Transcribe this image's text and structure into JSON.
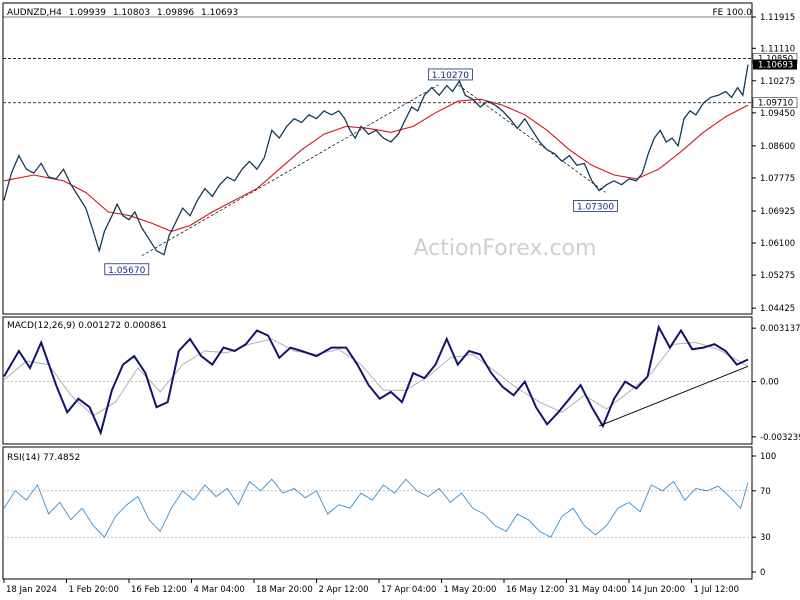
{
  "chart_data": {
    "type": "line",
    "symbol_header": "AUDNZD,H4",
    "ohlc": {
      "open": "1.09939",
      "high": "1.10803",
      "low": "1.09896",
      "close": "1.10693"
    },
    "fe_label": "FE 100.0",
    "watermark": "ActionForex.com",
    "x_ticks": [
      "18 Jan 2024",
      "1 Feb 20:00",
      "16 Feb 12:00",
      "4 Mar 04:00",
      "18 Mar 20:00",
      "2 Apr 12:00",
      "17 Apr 04:00",
      "1 May 20:00",
      "16 May 12:00",
      "31 May 04:00",
      "14 Jun 20:00",
      "1 Jul 12:00"
    ],
    "price_panel": {
      "y_ticks": [
        1.11915,
        1.1111,
        1.10275,
        1.0945,
        1.086,
        1.07775,
        1.06925,
        1.061,
        1.05275,
        1.04425
      ],
      "y_tick_labels": [
        "1.11915",
        "1.11110",
        "1.10275",
        "1.09450",
        "1.08600",
        "1.07775",
        "1.06925",
        "1.06100",
        "1.05275",
        "1.04425"
      ],
      "ylim": [
        1.043,
        1.1225
      ],
      "horizontal_levels": [
        {
          "label": "1.10850",
          "value": 1.1085,
          "style": "dashed"
        },
        {
          "label": "1.09710",
          "value": 1.0971,
          "style": "dashed"
        }
      ],
      "current_price_label": "1.10693",
      "current_price": 1.10693,
      "annotations": [
        {
          "label": "1.05670",
          "value": 1.0567,
          "t": 0.165
        },
        {
          "label": "1.10270",
          "value": 1.1027,
          "t": 0.6
        },
        {
          "label": "1.07300",
          "value": 1.073,
          "t": 0.795
        }
      ],
      "price_series": [
        [
          0.0,
          1.072
        ],
        [
          0.01,
          1.079
        ],
        [
          0.02,
          1.0835
        ],
        [
          0.03,
          1.08
        ],
        [
          0.04,
          1.079
        ],
        [
          0.05,
          1.0815
        ],
        [
          0.06,
          1.078
        ],
        [
          0.07,
          1.0775
        ],
        [
          0.08,
          1.08
        ],
        [
          0.09,
          1.076
        ],
        [
          0.1,
          1.073
        ],
        [
          0.11,
          1.07
        ],
        [
          0.12,
          1.064
        ],
        [
          0.128,
          1.059
        ],
        [
          0.135,
          1.064
        ],
        [
          0.145,
          1.068
        ],
        [
          0.152,
          1.071
        ],
        [
          0.16,
          1.068
        ],
        [
          0.168,
          1.067
        ],
        [
          0.176,
          1.069
        ],
        [
          0.185,
          1.065
        ],
        [
          0.195,
          1.062
        ],
        [
          0.205,
          1.059
        ],
        [
          0.215,
          1.058
        ],
        [
          0.222,
          1.063
        ],
        [
          0.23,
          1.066
        ],
        [
          0.24,
          1.07
        ],
        [
          0.25,
          1.068
        ],
        [
          0.26,
          1.072
        ],
        [
          0.27,
          1.075
        ],
        [
          0.28,
          1.073
        ],
        [
          0.29,
          1.076
        ],
        [
          0.3,
          1.078
        ],
        [
          0.31,
          1.077
        ],
        [
          0.32,
          1.08
        ],
        [
          0.33,
          1.082
        ],
        [
          0.34,
          1.08
        ],
        [
          0.35,
          1.083
        ],
        [
          0.36,
          1.09
        ],
        [
          0.37,
          1.088
        ],
        [
          0.38,
          1.091
        ],
        [
          0.39,
          1.093
        ],
        [
          0.4,
          1.092
        ],
        [
          0.41,
          1.094
        ],
        [
          0.42,
          1.093
        ],
        [
          0.43,
          1.095
        ],
        [
          0.44,
          1.094
        ],
        [
          0.45,
          1.095
        ],
        [
          0.458,
          1.093
        ],
        [
          0.465,
          1.09
        ],
        [
          0.472,
          1.088
        ],
        [
          0.48,
          1.091
        ],
        [
          0.49,
          1.089
        ],
        [
          0.5,
          1.09
        ],
        [
          0.51,
          1.088
        ],
        [
          0.52,
          1.087
        ],
        [
          0.53,
          1.089
        ],
        [
          0.54,
          1.093
        ],
        [
          0.548,
          1.096
        ],
        [
          0.556,
          1.095
        ],
        [
          0.565,
          1.099
        ],
        [
          0.575,
          1.101
        ],
        [
          0.585,
          1.099
        ],
        [
          0.595,
          1.1015
        ],
        [
          0.603,
          1.1
        ],
        [
          0.612,
          1.1027
        ],
        [
          0.62,
          1.099
        ],
        [
          0.63,
          1.098
        ],
        [
          0.64,
          1.096
        ],
        [
          0.65,
          1.0975
        ],
        [
          0.66,
          1.0965
        ],
        [
          0.67,
          1.095
        ],
        [
          0.68,
          1.093
        ],
        [
          0.69,
          1.0905
        ],
        [
          0.7,
          1.093
        ],
        [
          0.71,
          1.09
        ],
        [
          0.72,
          1.087
        ],
        [
          0.73,
          1.085
        ],
        [
          0.74,
          1.084
        ],
        [
          0.75,
          1.082
        ],
        [
          0.76,
          1.0835
        ],
        [
          0.77,
          1.081
        ],
        [
          0.78,
          1.0815
        ],
        [
          0.79,
          1.077
        ],
        [
          0.8,
          1.0745
        ],
        [
          0.81,
          1.076
        ],
        [
          0.82,
          1.077
        ],
        [
          0.83,
          1.076
        ],
        [
          0.84,
          1.0775
        ],
        [
          0.85,
          1.077
        ],
        [
          0.858,
          1.079
        ],
        [
          0.866,
          1.084
        ],
        [
          0.874,
          1.088
        ],
        [
          0.882,
          1.09
        ],
        [
          0.89,
          1.087
        ],
        [
          0.898,
          1.088
        ],
        [
          0.906,
          1.086
        ],
        [
          0.914,
          1.093
        ],
        [
          0.922,
          1.095
        ],
        [
          0.93,
          1.094
        ],
        [
          0.94,
          1.097
        ],
        [
          0.95,
          1.0985
        ],
        [
          0.96,
          1.099
        ],
        [
          0.97,
          1.1
        ],
        [
          0.978,
          1.0985
        ],
        [
          0.986,
          1.101
        ],
        [
          0.993,
          1.099
        ],
        [
          1.0,
          1.1069
        ]
      ],
      "ma_series": [
        [
          0.0,
          1.077
        ],
        [
          0.04,
          1.0785
        ],
        [
          0.08,
          1.077
        ],
        [
          0.11,
          1.074
        ],
        [
          0.14,
          1.069
        ],
        [
          0.17,
          1.068
        ],
        [
          0.2,
          1.066
        ],
        [
          0.225,
          1.064
        ],
        [
          0.25,
          1.0655
        ],
        [
          0.28,
          1.069
        ],
        [
          0.31,
          1.072
        ],
        [
          0.34,
          1.075
        ],
        [
          0.37,
          1.08
        ],
        [
          0.4,
          1.085
        ],
        [
          0.43,
          1.089
        ],
        [
          0.46,
          1.091
        ],
        [
          0.49,
          1.0905
        ],
        [
          0.52,
          1.0895
        ],
        [
          0.55,
          1.091
        ],
        [
          0.58,
          1.0945
        ],
        [
          0.61,
          1.0975
        ],
        [
          0.64,
          1.098
        ],
        [
          0.67,
          1.0965
        ],
        [
          0.7,
          1.094
        ],
        [
          0.73,
          1.09
        ],
        [
          0.76,
          1.085
        ],
        [
          0.79,
          1.081
        ],
        [
          0.82,
          1.0785
        ],
        [
          0.85,
          1.0775
        ],
        [
          0.88,
          1.08
        ],
        [
          0.91,
          1.0845
        ],
        [
          0.94,
          1.0895
        ],
        [
          0.97,
          1.0935
        ],
        [
          1.0,
          1.0965
        ]
      ]
    },
    "macd_panel": {
      "label": "MACD(12,26,9) 0.001272 0.000861",
      "y_ticks": [
        0.003137,
        0.0,
        -0.003239
      ],
      "y_tick_labels": [
        "0.003137",
        "0.00",
        "-0.003239"
      ],
      "ylim": [
        -0.0036,
        0.0035
      ],
      "macd_series": [
        [
          0.0,
          0.0003
        ],
        [
          0.02,
          0.0018
        ],
        [
          0.035,
          0.0008
        ],
        [
          0.05,
          0.0023
        ],
        [
          0.07,
          -0.0002
        ],
        [
          0.085,
          -0.0018
        ],
        [
          0.1,
          -0.001
        ],
        [
          0.115,
          -0.0015
        ],
        [
          0.13,
          -0.003
        ],
        [
          0.145,
          -0.0005
        ],
        [
          0.16,
          0.001
        ],
        [
          0.175,
          0.0015
        ],
        [
          0.19,
          0.0005
        ],
        [
          0.205,
          -0.0015
        ],
        [
          0.22,
          -0.0012
        ],
        [
          0.235,
          0.0018
        ],
        [
          0.25,
          0.0025
        ],
        [
          0.265,
          0.0015
        ],
        [
          0.28,
          0.001
        ],
        [
          0.295,
          0.002
        ],
        [
          0.31,
          0.0018
        ],
        [
          0.325,
          0.0022
        ],
        [
          0.34,
          0.003
        ],
        [
          0.355,
          0.0027
        ],
        [
          0.37,
          0.0014
        ],
        [
          0.385,
          0.002
        ],
        [
          0.4,
          0.0018
        ],
        [
          0.42,
          0.0015
        ],
        [
          0.44,
          0.002
        ],
        [
          0.46,
          0.002
        ],
        [
          0.475,
          0.001
        ],
        [
          0.49,
          -0.0002
        ],
        [
          0.505,
          -0.001
        ],
        [
          0.52,
          -0.0006
        ],
        [
          0.535,
          -0.0012
        ],
        [
          0.55,
          0.0005
        ],
        [
          0.565,
          0.0002
        ],
        [
          0.58,
          0.001
        ],
        [
          0.595,
          0.0025
        ],
        [
          0.61,
          0.001
        ],
        [
          0.625,
          0.0018
        ],
        [
          0.64,
          0.0016
        ],
        [
          0.655,
          0.0005
        ],
        [
          0.67,
          -0.0003
        ],
        [
          0.685,
          -0.0008
        ],
        [
          0.7,
          0.0
        ],
        [
          0.715,
          -0.0015
        ],
        [
          0.73,
          -0.0025
        ],
        [
          0.745,
          -0.0018
        ],
        [
          0.76,
          -0.001
        ],
        [
          0.775,
          -0.0002
        ],
        [
          0.79,
          -0.0015
        ],
        [
          0.805,
          -0.0026
        ],
        [
          0.82,
          -0.001
        ],
        [
          0.835,
          0.0
        ],
        [
          0.85,
          -0.0004
        ],
        [
          0.865,
          0.0003
        ],
        [
          0.88,
          0.0032
        ],
        [
          0.895,
          0.002
        ],
        [
          0.91,
          0.003
        ],
        [
          0.925,
          0.0019
        ],
        [
          0.94,
          0.002
        ],
        [
          0.955,
          0.0022
        ],
        [
          0.97,
          0.0018
        ],
        [
          0.985,
          0.001
        ],
        [
          1.0,
          0.0013
        ]
      ],
      "signal_series": [
        [
          0.0,
          0.0001
        ],
        [
          0.03,
          0.0012
        ],
        [
          0.06,
          0.001
        ],
        [
          0.09,
          -0.0008
        ],
        [
          0.12,
          -0.002
        ],
        [
          0.15,
          -0.0012
        ],
        [
          0.18,
          0.0008
        ],
        [
          0.21,
          -0.0006
        ],
        [
          0.24,
          0.001
        ],
        [
          0.27,
          0.0018
        ],
        [
          0.3,
          0.0017
        ],
        [
          0.33,
          0.0022
        ],
        [
          0.36,
          0.0025
        ],
        [
          0.39,
          0.0018
        ],
        [
          0.42,
          0.0016
        ],
        [
          0.45,
          0.0019
        ],
        [
          0.48,
          0.001
        ],
        [
          0.51,
          -0.0005
        ],
        [
          0.54,
          -0.0005
        ],
        [
          0.57,
          0.0003
        ],
        [
          0.6,
          0.0014
        ],
        [
          0.63,
          0.0016
        ],
        [
          0.66,
          0.0006
        ],
        [
          0.69,
          -0.0004
        ],
        [
          0.72,
          -0.0012
        ],
        [
          0.75,
          -0.0018
        ],
        [
          0.78,
          -0.0008
        ],
        [
          0.81,
          -0.0016
        ],
        [
          0.84,
          -0.0006
        ],
        [
          0.87,
          0.0005
        ],
        [
          0.9,
          0.0022
        ],
        [
          0.93,
          0.0023
        ],
        [
          0.96,
          0.0019
        ],
        [
          1.0,
          0.0009
        ]
      ],
      "trendline": [
        [
          0.8,
          -0.0026
        ],
        [
          1.0,
          0.0009
        ]
      ]
    },
    "rsi_panel": {
      "label": "RSI(14) 77.4852",
      "y_ticks": [
        100,
        70,
        30,
        0
      ],
      "y_tick_labels": [
        "100",
        "70",
        "30",
        "0"
      ],
      "ylim": [
        0,
        100
      ],
      "rsi_series": [
        [
          0.0,
          55
        ],
        [
          0.015,
          70
        ],
        [
          0.03,
          62
        ],
        [
          0.045,
          75
        ],
        [
          0.06,
          50
        ],
        [
          0.075,
          60
        ],
        [
          0.09,
          45
        ],
        [
          0.105,
          55
        ],
        [
          0.12,
          40
        ],
        [
          0.135,
          30
        ],
        [
          0.15,
          48
        ],
        [
          0.165,
          58
        ],
        [
          0.18,
          65
        ],
        [
          0.195,
          45
        ],
        [
          0.21,
          35
        ],
        [
          0.225,
          55
        ],
        [
          0.24,
          70
        ],
        [
          0.255,
          62
        ],
        [
          0.27,
          75
        ],
        [
          0.285,
          65
        ],
        [
          0.3,
          72
        ],
        [
          0.315,
          58
        ],
        [
          0.33,
          78
        ],
        [
          0.345,
          70
        ],
        [
          0.36,
          80
        ],
        [
          0.375,
          68
        ],
        [
          0.39,
          72
        ],
        [
          0.405,
          64
        ],
        [
          0.42,
          70
        ],
        [
          0.435,
          50
        ],
        [
          0.45,
          58
        ],
        [
          0.465,
          55
        ],
        [
          0.48,
          68
        ],
        [
          0.495,
          62
        ],
        [
          0.51,
          75
        ],
        [
          0.525,
          68
        ],
        [
          0.54,
          80
        ],
        [
          0.555,
          70
        ],
        [
          0.57,
          65
        ],
        [
          0.585,
          72
        ],
        [
          0.6,
          60
        ],
        [
          0.615,
          68
        ],
        [
          0.63,
          55
        ],
        [
          0.645,
          50
        ],
        [
          0.66,
          40
        ],
        [
          0.675,
          35
        ],
        [
          0.69,
          50
        ],
        [
          0.705,
          45
        ],
        [
          0.72,
          35
        ],
        [
          0.735,
          30
        ],
        [
          0.75,
          48
        ],
        [
          0.765,
          55
        ],
        [
          0.78,
          40
        ],
        [
          0.795,
          32
        ],
        [
          0.81,
          40
        ],
        [
          0.825,
          55
        ],
        [
          0.84,
          60
        ],
        [
          0.855,
          52
        ],
        [
          0.87,
          75
        ],
        [
          0.885,
          70
        ],
        [
          0.9,
          78
        ],
        [
          0.915,
          62
        ],
        [
          0.93,
          72
        ],
        [
          0.945,
          70
        ],
        [
          0.96,
          74
        ],
        [
          0.975,
          65
        ],
        [
          0.99,
          55
        ],
        [
          1.0,
          77
        ]
      ]
    }
  }
}
